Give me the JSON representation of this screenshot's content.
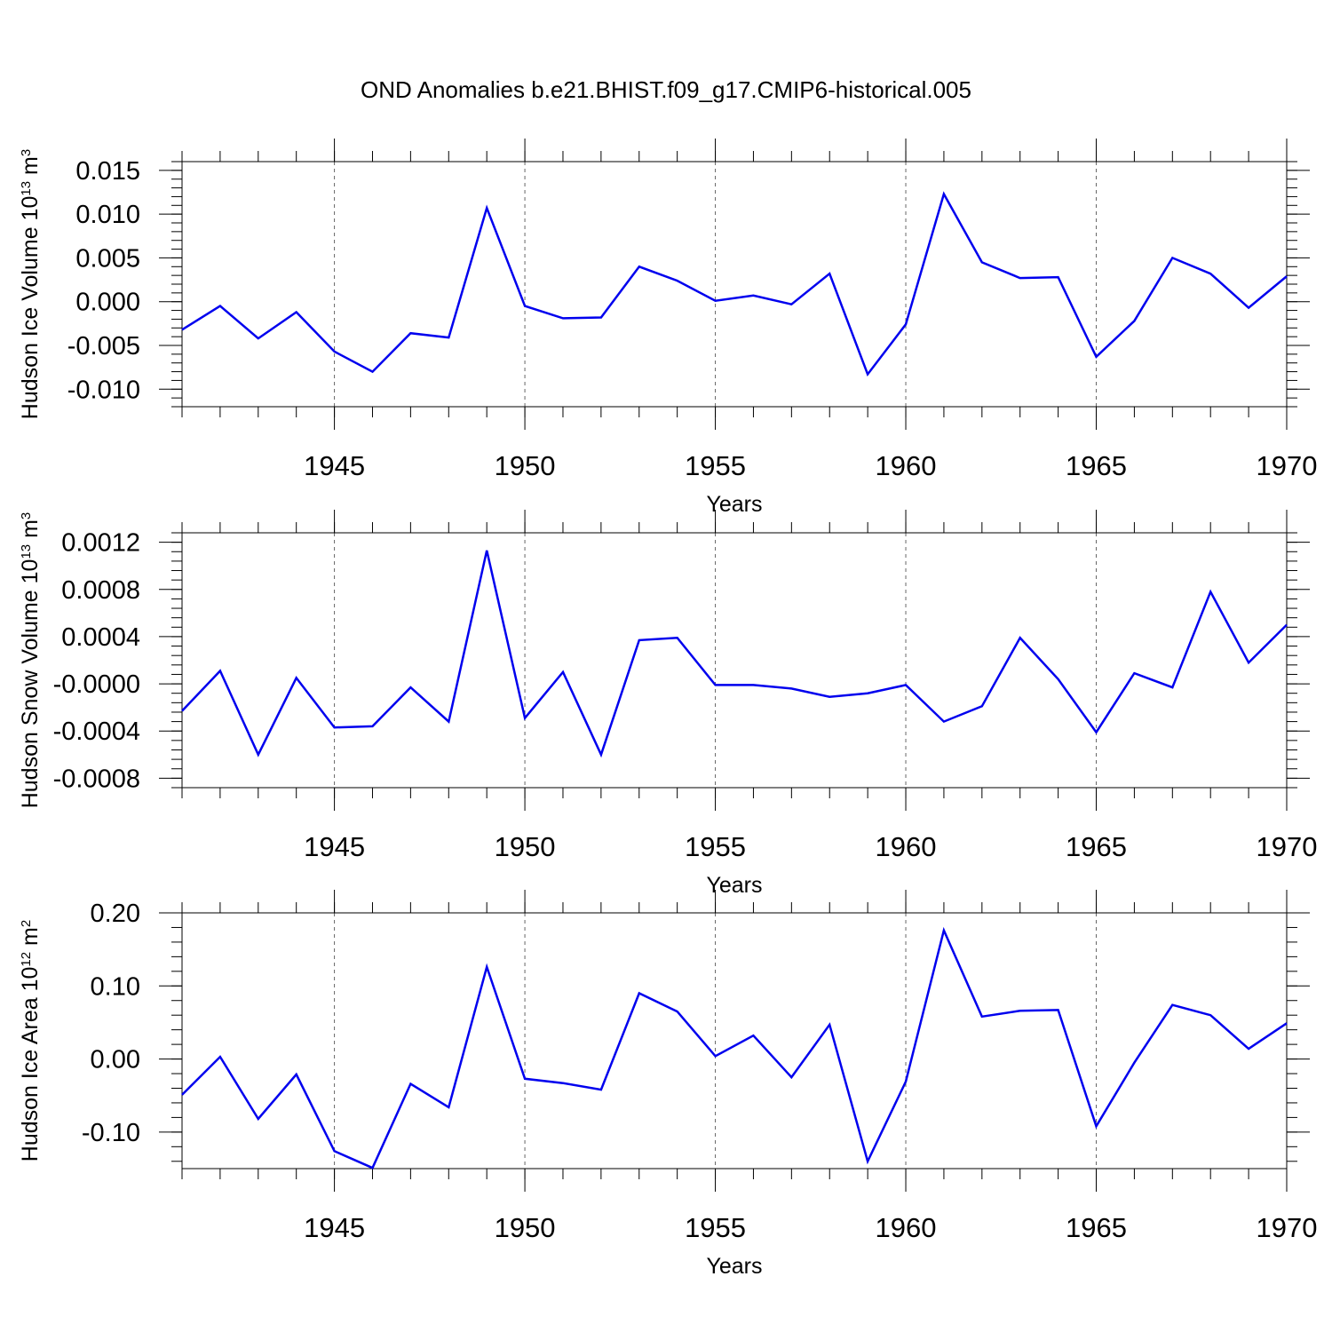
{
  "title": "OND Anomalies b.e21.BHIST.f09_g17.CMIP6-historical.005",
  "colors": {
    "line": "#0000ee",
    "frame": "#000000",
    "grid": "#666666"
  },
  "chart_data": [
    {
      "type": "line",
      "xlabel": "Years",
      "ylabel": {
        "text": "Hudson Ice Volume 10",
        "sup": "13",
        "unit": " m",
        "unit_sup": "3"
      },
      "xlim": [
        1941,
        1970
      ],
      "ylim": [
        -0.012,
        0.016
      ],
      "xticks": [
        1945,
        1950,
        1955,
        1960,
        1965,
        1970
      ],
      "yticks": [
        -0.01,
        -0.005,
        0.0,
        0.005,
        0.01,
        0.015
      ],
      "ytick_labels": [
        "-0.010",
        "-0.005",
        "0.000",
        "0.005",
        "0.010",
        "0.015"
      ],
      "grid": "vertical dashed at major x ticks",
      "series": [
        {
          "x": [
            1941,
            1942,
            1943,
            1944,
            1945,
            1946,
            1947,
            1948,
            1949,
            1950,
            1951,
            1952,
            1953,
            1954,
            1955,
            1956,
            1957,
            1958,
            1959,
            1960,
            1961,
            1962,
            1963,
            1964,
            1965,
            1966,
            1967,
            1968,
            1969,
            1970
          ],
          "values": [
            -0.0032,
            -0.0005,
            -0.0042,
            -0.0012,
            -0.0057,
            -0.008,
            -0.0036,
            -0.0041,
            0.0107,
            -0.0005,
            -0.0019,
            -0.0018,
            0.004,
            0.0024,
            0.0001,
            0.0007,
            -0.0003,
            0.0032,
            -0.0083,
            -0.0026,
            0.0123,
            0.0045,
            0.0027,
            0.0028,
            -0.0063,
            -0.0022,
            0.005,
            0.0032,
            -0.0007,
            0.0029
          ]
        }
      ]
    },
    {
      "type": "line",
      "xlabel": "Years",
      "ylabel": {
        "text": "Hudson Snow Volume 10",
        "sup": "13",
        "unit": " m",
        "unit_sup": "3"
      },
      "xlim": [
        1941,
        1970
      ],
      "ylim": [
        -0.00088,
        0.00128
      ],
      "xticks": [
        1945,
        1950,
        1955,
        1960,
        1965,
        1970
      ],
      "yticks": [
        -0.0008,
        -0.0004,
        0.0,
        0.0004,
        0.0008,
        0.0012
      ],
      "ytick_labels": [
        "-0.0008",
        "-0.0004",
        "-0.0000",
        "0.0004",
        "0.0008",
        "0.0012"
      ],
      "grid": "vertical dashed at major x ticks",
      "series": [
        {
          "x": [
            1941,
            1942,
            1943,
            1944,
            1945,
            1946,
            1947,
            1948,
            1949,
            1950,
            1951,
            1952,
            1953,
            1954,
            1955,
            1956,
            1957,
            1958,
            1959,
            1960,
            1961,
            1962,
            1963,
            1964,
            1965,
            1966,
            1967,
            1968,
            1969,
            1970
          ],
          "values": [
            -0.00023,
            0.00011,
            -0.0006,
            5e-05,
            -0.00037,
            -0.00036,
            -3e-05,
            -0.00032,
            0.00113,
            -0.00029,
            0.0001,
            -0.0006,
            0.00037,
            0.00039,
            -1e-05,
            -1e-05,
            -4e-05,
            -0.00011,
            -8e-05,
            -1e-05,
            -0.00032,
            -0.00019,
            0.00039,
            4e-05,
            -0.00041,
            9e-05,
            -3e-05,
            0.00078,
            0.00018,
            0.0005
          ]
        }
      ]
    },
    {
      "type": "line",
      "xlabel": "Years",
      "ylabel": {
        "text": "Hudson Ice Area 10",
        "sup": "12",
        "unit": " m",
        "unit_sup": "2"
      },
      "xlim": [
        1941,
        1970
      ],
      "ylim": [
        -0.15,
        0.2
      ],
      "xticks": [
        1945,
        1950,
        1955,
        1960,
        1965,
        1970
      ],
      "yticks": [
        -0.1,
        0.0,
        0.1,
        0.2
      ],
      "ytick_labels": [
        "-0.10",
        "0.00",
        "0.10",
        "0.20"
      ],
      "grid": "vertical dashed at major x ticks",
      "series": [
        {
          "x": [
            1941,
            1942,
            1943,
            1944,
            1945,
            1946,
            1947,
            1948,
            1949,
            1950,
            1951,
            1952,
            1953,
            1954,
            1955,
            1956,
            1957,
            1958,
            1959,
            1960,
            1961,
            1962,
            1963,
            1964,
            1965,
            1966,
            1967,
            1968,
            1969,
            1970
          ],
          "values": [
            -0.049,
            0.003,
            -0.082,
            -0.021,
            -0.126,
            -0.149,
            -0.034,
            -0.066,
            0.126,
            -0.027,
            -0.033,
            -0.042,
            0.09,
            0.065,
            0.004,
            0.032,
            -0.025,
            0.047,
            -0.14,
            -0.031,
            0.176,
            0.058,
            0.066,
            0.067,
            -0.092,
            -0.005,
            0.074,
            0.06,
            0.014,
            0.049
          ]
        }
      ]
    }
  ]
}
